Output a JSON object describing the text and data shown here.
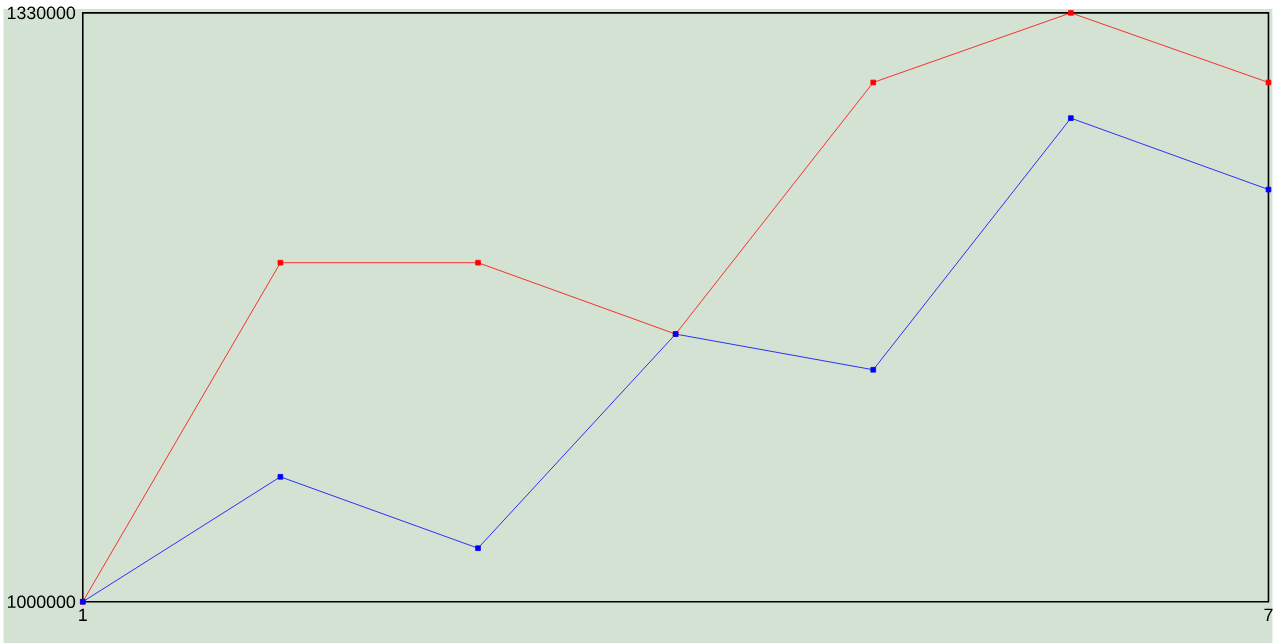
{
  "chart_data": {
    "type": "line",
    "x": [
      1,
      2,
      3,
      4,
      5,
      6,
      7
    ],
    "series": [
      {
        "color": "#ff0000",
        "values": [
          1000000,
          1190000,
          1190000,
          1150000,
          1291000,
          1330000,
          1291000
        ]
      },
      {
        "color": "#0000ff",
        "values": [
          1000000,
          1070000,
          1030000,
          1150000,
          1130000,
          1271000,
          1231000
        ]
      }
    ],
    "xlim": [
      1,
      7
    ],
    "ylim": [
      1000000,
      1330000
    ],
    "xticks": [
      1,
      7
    ],
    "yticks": [
      1000000,
      1330000
    ],
    "marker": "square",
    "line_style": "solid"
  }
}
